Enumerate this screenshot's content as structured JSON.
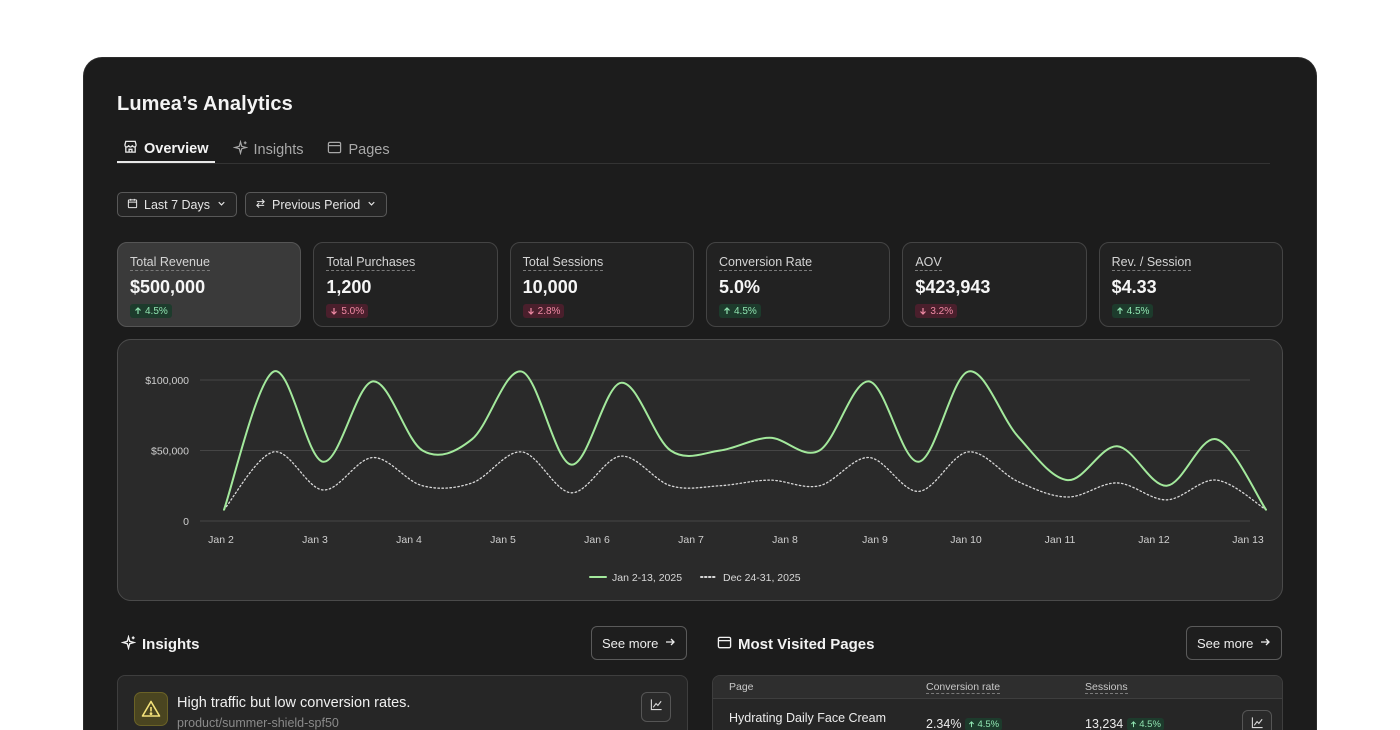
{
  "app": {
    "title": "Lumea’s Analytics"
  },
  "tabs": [
    {
      "label": "Overview",
      "icon": "store-icon",
      "active": true
    },
    {
      "label": "Insights",
      "icon": "sparkle-icon",
      "active": false
    },
    {
      "label": "Pages",
      "icon": "browser-window-icon",
      "active": false
    }
  ],
  "filters": {
    "range_label": "Last 7 Days",
    "compare_label": "Previous Period"
  },
  "kpis": [
    {
      "label": "Total Revenue",
      "value": "$500,000",
      "change": "4.5%",
      "direction": "up"
    },
    {
      "label": "Total Purchases",
      "value": "1,200",
      "change": "5.0%",
      "direction": "down"
    },
    {
      "label": "Total Sessions",
      "value": "10,000",
      "change": "2.8%",
      "direction": "down"
    },
    {
      "label": "Conversion Rate",
      "value": "5.0%",
      "change": "4.5%",
      "direction": "up"
    },
    {
      "label": "AOV",
      "value": "$423,943",
      "change": "3.2%",
      "direction": "down"
    },
    {
      "label": "Rev. / Session",
      "value": "$4.33",
      "change": "4.5%",
      "direction": "up"
    }
  ],
  "chart_data": {
    "type": "line",
    "title": "",
    "xlabel": "",
    "ylabel": "",
    "ylim": [
      0,
      100000
    ],
    "grid": true,
    "legend_position": "bottom-center",
    "x_ticks": [
      "Jan 2",
      "Jan 3",
      "Jan 4",
      "Jan 5",
      "Jan 6",
      "Jan 7",
      "Jan 8",
      "Jan 9",
      "Jan 10",
      "Jan 11",
      "Jan 12",
      "Jan 13"
    ],
    "y_ticks": [
      {
        "value": 100000,
        "label": "$100,000"
      },
      {
        "value": 50000,
        "label": "$50,000"
      },
      {
        "value": 0,
        "label": "0"
      }
    ],
    "x": [
      0,
      0.5,
      1,
      1.5,
      2,
      2.5,
      3,
      3.5,
      4,
      4.5,
      5,
      5.5,
      6,
      6.5,
      7,
      7.5,
      8,
      8.5,
      9,
      9.5,
      10,
      10.5,
      11,
      11.5
    ],
    "series": [
      {
        "name": "Jan 2-13, 2025",
        "color": "#a3e99c",
        "style": "solid",
        "values": [
          8000,
          106000,
          42000,
          99000,
          50000,
          58000,
          106000,
          40000,
          98000,
          50000,
          50000,
          59000,
          50000,
          99000,
          42000,
          106000,
          60000,
          29000,
          53000,
          25000,
          58000,
          8000,
          null,
          null
        ]
      },
      {
        "name": "Dec 24-31, 2025",
        "color": "#d8d8d8",
        "style": "dotted",
        "values": [
          8000,
          49000,
          22000,
          45000,
          25000,
          27000,
          49000,
          20000,
          46000,
          25000,
          25000,
          29000,
          25000,
          45000,
          21000,
          49000,
          28000,
          17000,
          27000,
          15000,
          29000,
          8000,
          null,
          null
        ]
      }
    ]
  },
  "insights": {
    "title": "Insights",
    "see_more": "See more",
    "item_title": "High traffic but low conversion rates.",
    "item_sub": "product/summer-shield-spf50"
  },
  "pages": {
    "title": "Most Visited Pages",
    "see_more": "See more",
    "columns": [
      "Page",
      "Conversion rate",
      "Sessions"
    ],
    "rows": [
      {
        "page": "Hydrating Daily Face Cream",
        "conversion": "2.34%",
        "conversion_change": "4.5%",
        "sessions": "13,234",
        "sessions_change": "4.5%"
      }
    ]
  }
}
